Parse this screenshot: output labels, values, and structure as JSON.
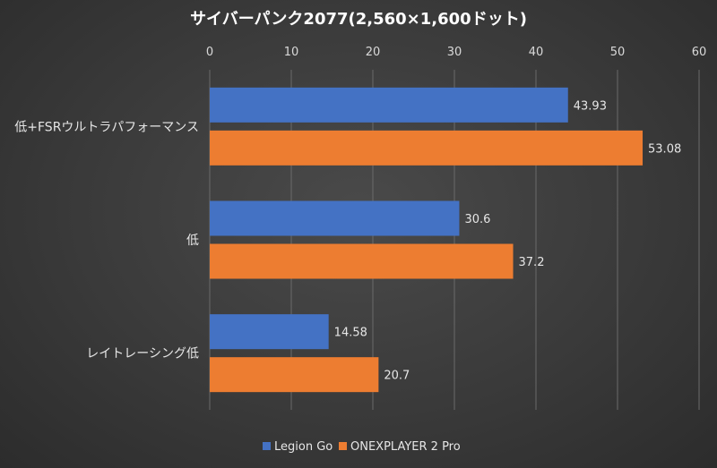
{
  "chart_data": {
    "type": "bar",
    "orientation": "horizontal",
    "title": "サイバーパンク2077(2,560×1,600ドット)",
    "categories": [
      "低+FSRウルトラパフォーマンス",
      "低",
      "レイトレーシング低"
    ],
    "series": [
      {
        "name": "Legion Go",
        "color": "#4472c4",
        "values": [
          43.93,
          30.6,
          14.58
        ],
        "labels": [
          "43.93",
          "30.6",
          "14.58"
        ]
      },
      {
        "name": "ONEXPLAYER 2 Pro",
        "color": "#ed7d31",
        "values": [
          53.08,
          37.2,
          20.7
        ],
        "labels": [
          "53.08",
          "37.2",
          "20.7"
        ]
      }
    ],
    "xlim": [
      0,
      60
    ],
    "xticks": [
      "0",
      "10",
      "20",
      "30",
      "40",
      "50",
      "60"
    ],
    "tick_values": [
      0,
      10,
      20,
      30,
      40,
      50,
      60
    ],
    "xaxis_position": "top",
    "grid": true,
    "legend": "bottom"
  }
}
